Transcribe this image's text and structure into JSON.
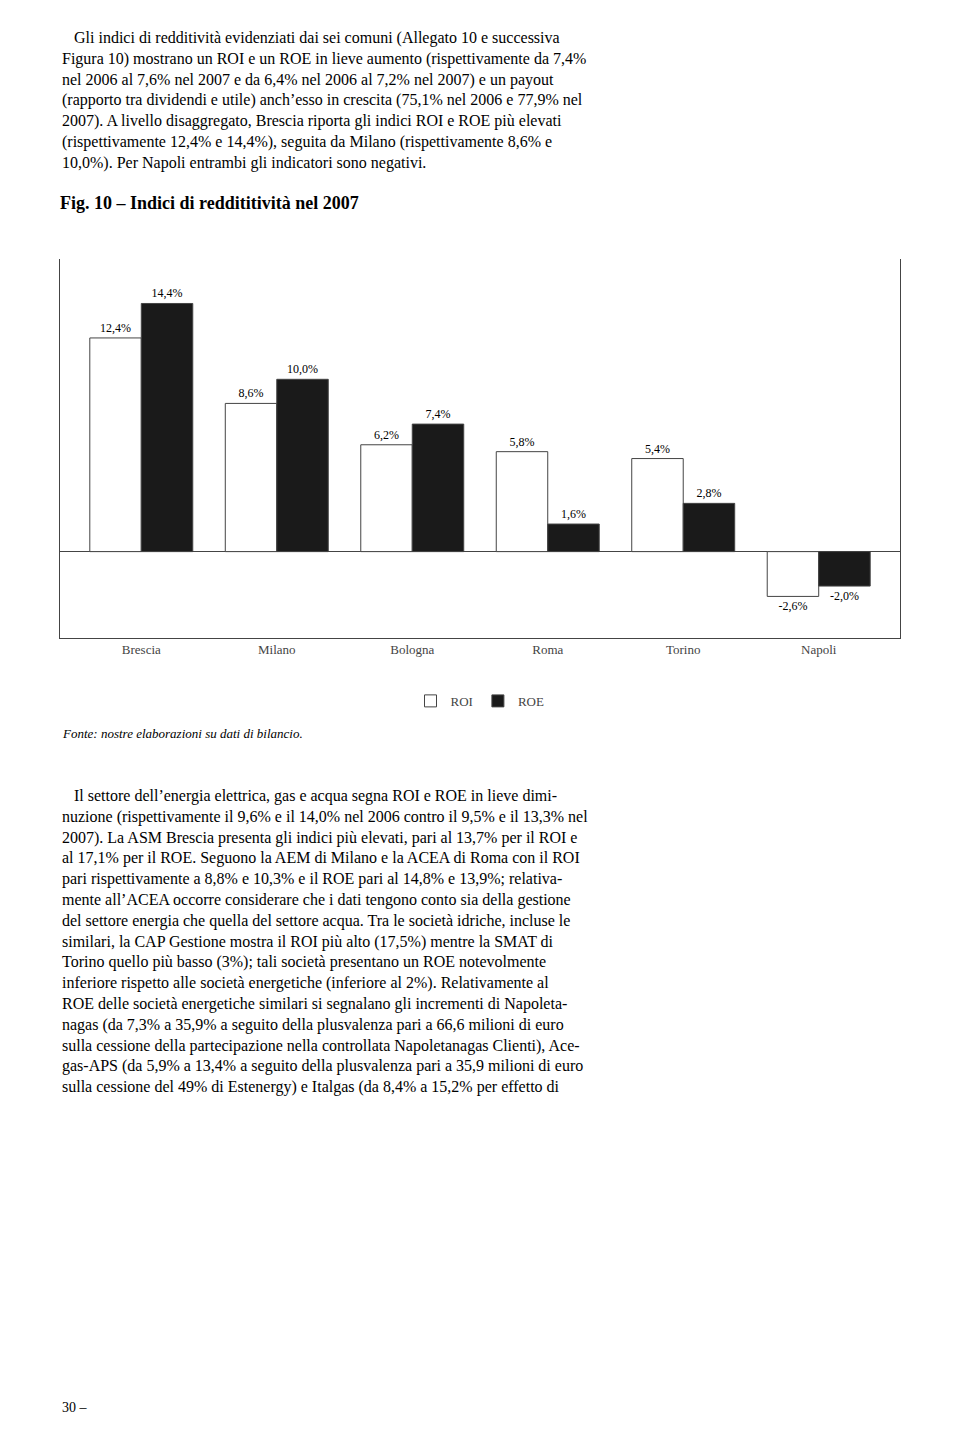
{
  "chart_data": {
    "type": "bar",
    "title": "Fig. 10 – Indici di reddititività nel 2007",
    "categories": [
      "Brescia",
      "Milano",
      "Bologna",
      "Roma",
      "Torino",
      "Napoli"
    ],
    "series": [
      {
        "name": "ROI",
        "color": "#ffffff",
        "values": [
          12.4,
          8.6,
          6.2,
          5.8,
          5.4,
          -2.6
        ],
        "value_labels": [
          "12,4%",
          "8,6%",
          "6,2%",
          "5,8%",
          "5,4%",
          "-2,6%"
        ]
      },
      {
        "name": "ROE",
        "color": "#1a1a1a",
        "values": [
          14.4,
          10.0,
          7.4,
          1.6,
          2.8,
          -2.0
        ],
        "value_labels": [
          "14,4%",
          "10,0%",
          "7,4%",
          "1,6%",
          "2,8%",
          "-2,0%"
        ]
      }
    ],
    "ylim": [
      -5.0,
      17.0
    ],
    "tick_labels": "x",
    "grid": false,
    "legend": "bottom",
    "data_labels": true,
    "annotations": [
      "   Gli indici di redditività evidenziati dai sei comuni (Allegato 10 e successiva\nFigura 10) mostrano un ROI e un ROE in lieve aumento (rispettivamente da 7,4%\nnel 2006 al 7,6% nel 2007 e da 6,4% nel 2006 al 7,2% nel 2007) e un payout\n(rapporto tra dividendi e utile) anch’esso in crescita (75,1% nel 2006 e 77,9% nel\n2007). A livello disaggregato, Brescia riporta gli indici ROI e ROE più elevati\n(rispettivamente 12,4% e 14,4%), seguita da Milano (rispettivamente 8,6% e\n10,0%). Per Napoli entrambi gli indicatori sono negativi.",
      "Fonte: nostre elaborazioni su dati di bilancio.",
      "   Il settore dell’energia elettrica, gas e acqua segna ROI e ROE in lieve dimi-\nnuzione (rispettivamente il 9,6% e il 14,0% nel 2006 contro il 9,5% e il 13,3% nel\n2007). La ASM Brescia presenta gli indici più elevati, pari al 13,7% per il ROI e\nal 17,1% per il ROE. Seguono la AEM di Milano e la ACEA di Roma con il ROI\npari rispettivamente a 8,8% e 10,3% e il ROE pari al 14,8% e 13,9%; relativa-\nmente all’ACEA occorre considerare che i dati tengono conto sia della gestione\ndel settore energia che quella del settore acqua. Tra le società idriche, incluse le\nsimilari, la CAP Gestione mostra il ROI più alto (17,5%) mentre la SMAT di\nTorino quello più basso (3%); tali società presentano un ROE notevolmente\ninferiore rispetto alle società energetiche (inferiore al 2%). Relativamente al\nROE delle società energetiche similari si segnalano gli incrementi di Napoleta-\nnagas (da 7,3% a 35,9% a seguito della plusvalenza pari a 66,6 milioni di euro\nsulla cessione della partecipazione nella controllata Napoletanagas Clienti), Ace-\ngas-APS (da 5,9% a 13,4% a seguito della plusvalenza pari a 35,9 milioni di euro\nsulla cessione del 49% di Estenergy) e Italgas (da 8,4% a 15,2% per effetto di",
      "30 –"
    ]
  }
}
